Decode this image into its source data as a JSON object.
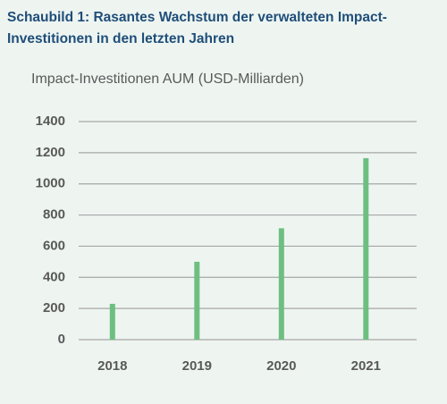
{
  "chart_data": {
    "type": "bar",
    "title": [
      "Schaubild 1: Rasantes Wachstum der verwalteten Impact-",
      "Investitionen in den letzten Jahren"
    ],
    "y_label": "Impact-Investitionen  AUM (USD-Milliarden)",
    "categories": [
      "2018",
      "2019",
      "2020",
      "2021"
    ],
    "values": [
      230,
      500,
      715,
      1165
    ],
    "color": "#6dbf7f",
    "ylim": [
      0,
      1400
    ],
    "yticks": [
      0,
      200,
      400,
      600,
      800,
      1000,
      1200,
      1400
    ],
    "grid": true
  }
}
